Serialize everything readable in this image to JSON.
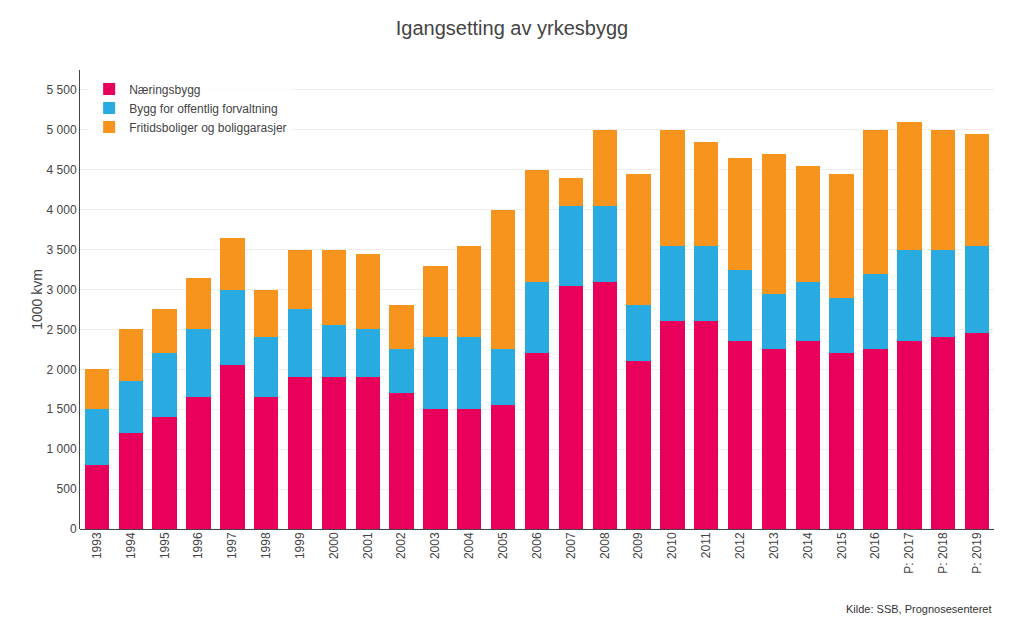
{
  "chart_data": {
    "type": "bar",
    "title": "Igangsetting av yrkesbygg",
    "ylabel": "1000 kvm",
    "annotations": [
      "Kilde: SSB, Prognosesenteret"
    ],
    "categories": [
      "1993",
      "1994",
      "1995",
      "1996",
      "1997",
      "1998",
      "1999",
      "2000",
      "2001",
      "2002",
      "2003",
      "2004",
      "2005",
      "2006",
      "2007",
      "2008",
      "2009",
      "2010",
      "2011",
      "2012",
      "2013",
      "2014",
      "2015",
      "2016",
      "P: 2017",
      "P: 2018",
      "P: 2019"
    ],
    "series": [
      {
        "name": "Næringsbygg",
        "color": "#E8005A",
        "values": [
          800,
          1200,
          1400,
          1650,
          2050,
          1650,
          1900,
          1900,
          1900,
          1700,
          1500,
          1500,
          1550,
          2200,
          3050,
          3100,
          2100,
          2600,
          2600,
          2350,
          2250,
          2350,
          2200,
          2250,
          2350,
          2400,
          2450
        ]
      },
      {
        "name": "Bygg for offentlig forvaltning",
        "color": "#29ABE2",
        "values": [
          700,
          650,
          800,
          850,
          950,
          750,
          850,
          650,
          600,
          550,
          900,
          900,
          700,
          900,
          1000,
          950,
          700,
          950,
          950,
          900,
          700,
          750,
          700,
          950,
          1150,
          1100,
          1100
        ]
      },
      {
        "name": "Fritidsboliger og boliggarasjer",
        "color": "#F7941D",
        "values": [
          500,
          650,
          550,
          650,
          650,
          600,
          750,
          950,
          950,
          550,
          900,
          1150,
          1750,
          1400,
          350,
          950,
          1650,
          1450,
          1300,
          1400,
          1750,
          1450,
          1550,
          1800,
          1600,
          1500,
          1400
        ]
      }
    ],
    "stacked": true,
    "ylim": [
      0,
      5750
    ],
    "yticks": [
      0,
      500,
      {
        "value": 1000,
        "label": "1 000"
      },
      {
        "value": 1500,
        "label": "1 500"
      },
      {
        "value": 2000,
        "label": "2 000"
      },
      {
        "value": 2500,
        "label": "2 500"
      },
      {
        "value": 3000,
        "label": "3 000"
      },
      {
        "value": 3500,
        "label": "3 500"
      },
      {
        "value": 4000,
        "label": "4 000"
      },
      {
        "value": 4500,
        "label": "4 500"
      },
      {
        "value": 5000,
        "label": "5 000"
      },
      {
        "value": 5500,
        "label": "5 500"
      }
    ],
    "grid": true,
    "legend": "upper left"
  }
}
